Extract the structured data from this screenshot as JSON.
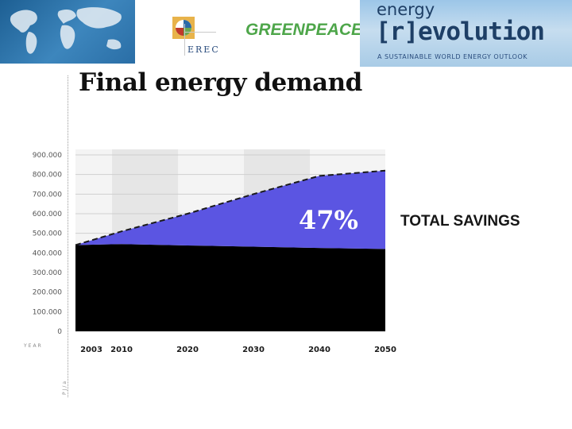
{
  "header": {
    "erec_text": "EREC",
    "greenpeace_text": "GREENPEACE",
    "revolution_line1": "energy",
    "revolution_line2": "[r]evolution",
    "revolution_tagline": "A SUSTAINABLE WORLD ENERGY OUTLOOK"
  },
  "slide": {
    "title": "Final energy demand",
    "savings_percent": "47%",
    "savings_label": "TOTAL SAVINGS"
  },
  "chart_data": {
    "type": "area",
    "title": "Final energy demand",
    "xlabel": "YEAR",
    "ylabel": "PJ/a",
    "x": [
      2003,
      2010,
      2020,
      2030,
      2040,
      2050
    ],
    "x_ticks": [
      "2003",
      "2010",
      "2020",
      "2030",
      "2040",
      "2050"
    ],
    "y_ticks": [
      "900.000",
      "800.000",
      "700.000",
      "600.000",
      "500.000",
      "400.000",
      "300.000",
      "200.000",
      "100.000",
      "0"
    ],
    "ylim": [
      0,
      900000
    ],
    "grid": true,
    "series": [
      {
        "name": "",
        "values": [
          440000,
          445000,
          438000,
          432000,
          425000,
          420000
        ],
        "color": "#000000"
      },
      {
        "name": "",
        "values": [
          0,
          65000,
          162000,
          268000,
          368000,
          400000
        ],
        "color": "#5b55e2"
      }
    ],
    "reference_line": {
      "values": [
        440000,
        510000,
        600000,
        700000,
        793000,
        820000
      ],
      "style": "dashed",
      "color": "#1a1a1a"
    },
    "annotations": [
      "47%",
      "TOTAL SAVINGS"
    ]
  }
}
